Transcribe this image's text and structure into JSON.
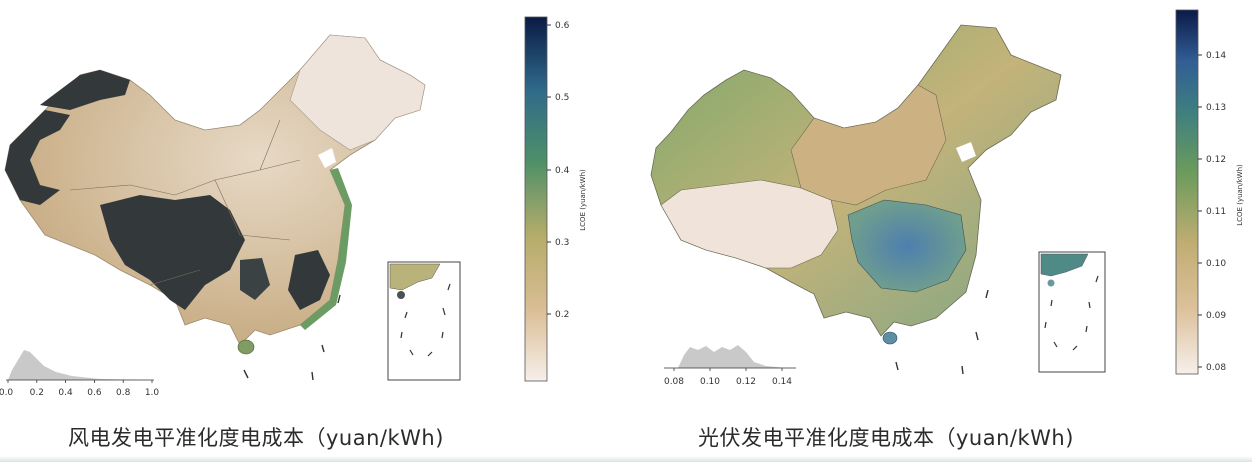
{
  "maps": [
    {
      "id": "wind",
      "caption": "风电发电平准化度电成本（yuan/kWh)",
      "colorbar": {
        "label": "LCOE (yuan/kWh)",
        "ticks": [
          "0.2",
          "0.3",
          "0.4",
          "0.5",
          "0.6"
        ],
        "tick_values": [
          0.2,
          0.3,
          0.4,
          0.5,
          0.6
        ],
        "range": [
          0.11,
          0.615
        ]
      },
      "histogram": {
        "ticks": [
          "0.0",
          "0.2",
          "0.4",
          "0.6",
          "0.8",
          "1.0"
        ],
        "range": [
          0.0,
          1.0
        ]
      }
    },
    {
      "id": "solar",
      "caption": "光伏发电平准化度电成本（yuan/kWh)",
      "colorbar": {
        "label": "LCOE (yuan/kWh)",
        "ticks": [
          "0.08",
          "0.09",
          "0.10",
          "0.11",
          "0.12",
          "0.13",
          "0.14"
        ],
        "tick_values": [
          0.08,
          0.09,
          0.1,
          0.11,
          0.12,
          0.13,
          0.14
        ],
        "range": [
          0.077,
          0.147
        ]
      },
      "histogram": {
        "ticks": [
          "0.08",
          "0.10",
          "0.12",
          "0.14"
        ],
        "range": [
          0.07,
          0.15
        ]
      }
    }
  ],
  "colors": {
    "cmap_low": "#f4ece6",
    "cmap_mid_low": "#d6b68a",
    "cmap_mid": "#b7b06e",
    "cmap_mid_high": "#5e9a60",
    "cmap_high": "#3f7f8f",
    "cmap_top": "#0b1f4f",
    "wind_dark_zone": "#33383a",
    "histogram_fill": "#c9c9c9"
  }
}
